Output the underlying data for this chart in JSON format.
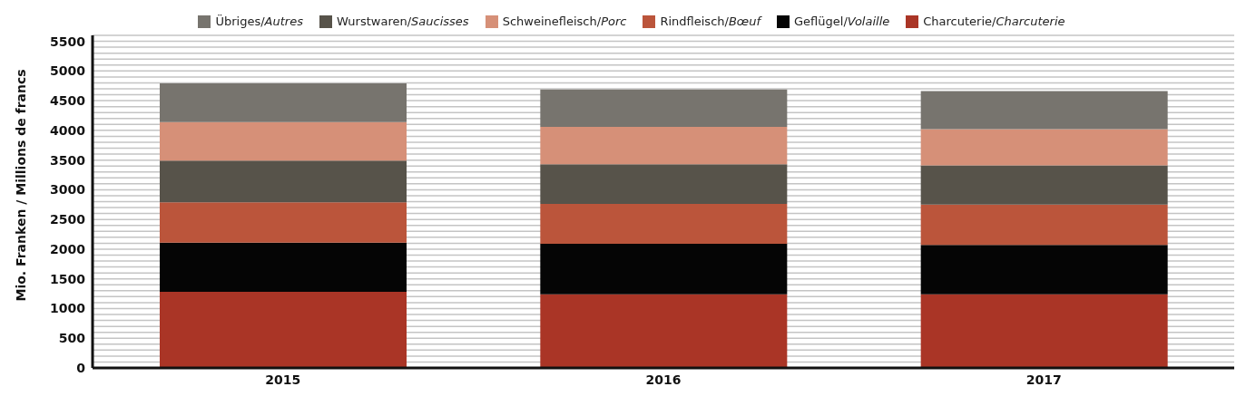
{
  "chart_data": {
    "type": "bar",
    "stacked": true,
    "ylabel": "Mio. Franken / Millions de francs",
    "categories": [
      "2015",
      "2016",
      "2017"
    ],
    "series": [
      {
        "name": "Charcuterie/Charcuterie",
        "color": "#aa3526",
        "values": [
          1280,
          1240,
          1240
        ]
      },
      {
        "name": "Geflügel/Volaille",
        "color": "#050505",
        "values": [
          830,
          850,
          830
        ]
      },
      {
        "name": "Rindfleisch/Bœuf",
        "color": "#bb553b",
        "values": [
          680,
          670,
          680
        ]
      },
      {
        "name": "Wurstwaren/Saucisses",
        "color": "#57534a",
        "values": [
          700,
          670,
          660
        ]
      },
      {
        "name": "Schweinefleisch/Porc",
        "color": "#d69078",
        "values": [
          650,
          630,
          610
        ]
      },
      {
        "name": "Übriges/Autres",
        "color": "#77746e",
        "values": [
          650,
          630,
          640
        ]
      }
    ],
    "ylim": [
      0,
      5600
    ],
    "yticks": [
      0,
      {
        "value": 100,
        "label": null
      },
      {
        "value": 200,
        "label": null
      },
      {
        "value": 300,
        "label": null
      },
      {
        "value": 400,
        "label": null
      },
      500,
      {
        "value": 600,
        "label": null
      },
      {
        "value": 700,
        "label": null
      },
      {
        "value": 800,
        "label": null
      },
      {
        "value": 900,
        "label": null
      },
      1000,
      {
        "value": 1100,
        "label": null
      },
      {
        "value": 1200,
        "label": null
      },
      {
        "value": 1300,
        "label": null
      },
      {
        "value": 1400,
        "label": null
      },
      1500,
      {
        "value": 1600,
        "label": null
      },
      {
        "value": 1700,
        "label": null
      },
      {
        "value": 1800,
        "label": null
      },
      {
        "value": 1900,
        "label": null
      },
      2000,
      {
        "value": 2100,
        "label": null
      },
      {
        "value": 2200,
        "label": null
      },
      {
        "value": 2300,
        "label": null
      },
      {
        "value": 2400,
        "label": null
      },
      2500,
      {
        "value": 2600,
        "label": null
      },
      {
        "value": 2700,
        "label": null
      },
      {
        "value": 2800,
        "label": null
      },
      {
        "value": 2900,
        "label": null
      },
      3000,
      {
        "value": 3100,
        "label": null
      },
      {
        "value": 3200,
        "label": null
      },
      {
        "value": 3300,
        "label": null
      },
      {
        "value": 3400,
        "label": null
      },
      3500,
      {
        "value": 3600,
        "label": null
      },
      {
        "value": 3700,
        "label": null
      },
      {
        "value": 3800,
        "label": null
      },
      {
        "value": 3900,
        "label": null
      },
      4000,
      {
        "value": 4100,
        "label": null
      },
      {
        "value": 4200,
        "label": null
      },
      {
        "value": 4300,
        "label": null
      },
      {
        "value": 4400,
        "label": null
      },
      4500,
      {
        "value": 4600,
        "label": null
      },
      {
        "value": 4700,
        "label": null
      },
      {
        "value": 4800,
        "label": null
      },
      {
        "value": 4900,
        "label": null
      },
      5000,
      {
        "value": 5100,
        "label": null
      },
      {
        "value": 5200,
        "label": null
      },
      {
        "value": 5300,
        "label": null
      },
      {
        "value": 5400,
        "label": null
      },
      5500,
      {
        "value": 5600,
        "label": null
      }
    ],
    "grid": "y",
    "legend": "top"
  }
}
